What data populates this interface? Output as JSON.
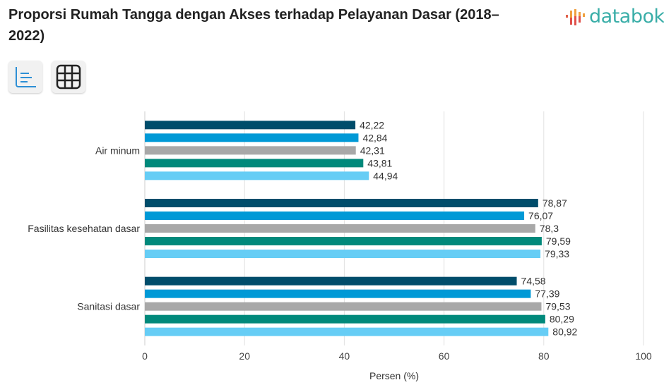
{
  "header": {
    "title": "Proporsi Rumah Tangga dengan Akses terhadap Pelayanan Dasar (2018–2022)",
    "logo": "databoks"
  },
  "toolbar": {
    "buttons": [
      {
        "icon": "bar-chart-icon"
      },
      {
        "icon": "table-grid-icon"
      }
    ]
  },
  "chart_data": {
    "type": "bar",
    "orientation": "horizontal",
    "categories": [
      "Air minum",
      "Fasilitas kesehatan dasar",
      "Sanitasi dasar"
    ],
    "series": [
      {
        "values": [
          42.22,
          78.87,
          74.58
        ],
        "labels": [
          "42,22",
          "78,87",
          "74,58"
        ],
        "color": "#004d6b"
      },
      {
        "values": [
          42.84,
          76.07,
          77.39
        ],
        "labels": [
          "42,84",
          "76,07",
          "77,39"
        ],
        "color": "#0099d6"
      },
      {
        "values": [
          42.31,
          78.3,
          79.53
        ],
        "labels": [
          "42,31",
          "78,3",
          "79,53"
        ],
        "color": "#a8a8a8"
      },
      {
        "values": [
          43.81,
          79.59,
          80.29
        ],
        "labels": [
          "43,81",
          "79,59",
          "80,29"
        ],
        "color": "#00897b"
      },
      {
        "values": [
          44.94,
          79.33,
          80.92
        ],
        "labels": [
          "44,94",
          "79,33",
          "80,92"
        ],
        "color": "#66cdf5"
      }
    ],
    "xlabel": "Persen (%)",
    "xlim": [
      0,
      100
    ],
    "xticks": [
      "0",
      "20",
      "40",
      "60",
      "80",
      "100"
    ],
    "grid": true
  }
}
